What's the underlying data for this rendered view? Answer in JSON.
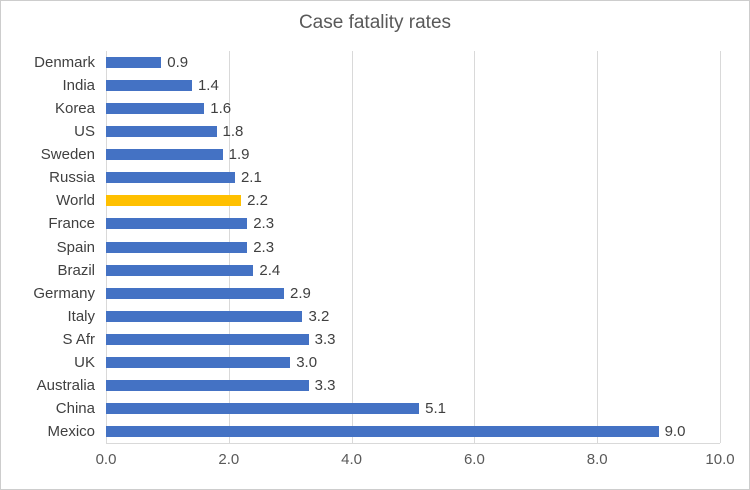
{
  "chart_data": {
    "type": "bar",
    "orientation": "horizontal",
    "title": "Case fatality rates",
    "categories": [
      "Denmark",
      "India",
      "Korea",
      "US",
      "Sweden",
      "Russia",
      "World",
      "France",
      "Spain",
      "Brazil",
      "Germany",
      "Italy",
      "S Afr",
      "UK",
      "Australia",
      "China",
      "Mexico"
    ],
    "values": [
      0.9,
      1.4,
      1.6,
      1.8,
      1.9,
      2.1,
      2.2,
      2.3,
      2.3,
      2.4,
      2.9,
      3.2,
      3.3,
      3.0,
      3.3,
      5.1,
      9.0
    ],
    "value_labels": [
      "0.9",
      "1.4",
      "1.6",
      "1.8",
      "1.9",
      "2.1",
      "2.2",
      "2.3",
      "2.3",
      "2.4",
      "2.9",
      "3.2",
      "3.3",
      "3.0",
      "3.3",
      "5.1",
      "9.0"
    ],
    "x_ticks": [
      "0.0",
      "2.0",
      "4.0",
      "6.0",
      "8.0",
      "10.0"
    ],
    "xlim": [
      0,
      10
    ],
    "bar_color": "#4472C4",
    "highlight_category": "World",
    "highlight_color": "#FFC000",
    "grid": true,
    "grid_color": "#D9D9D9",
    "legend": "none"
  }
}
